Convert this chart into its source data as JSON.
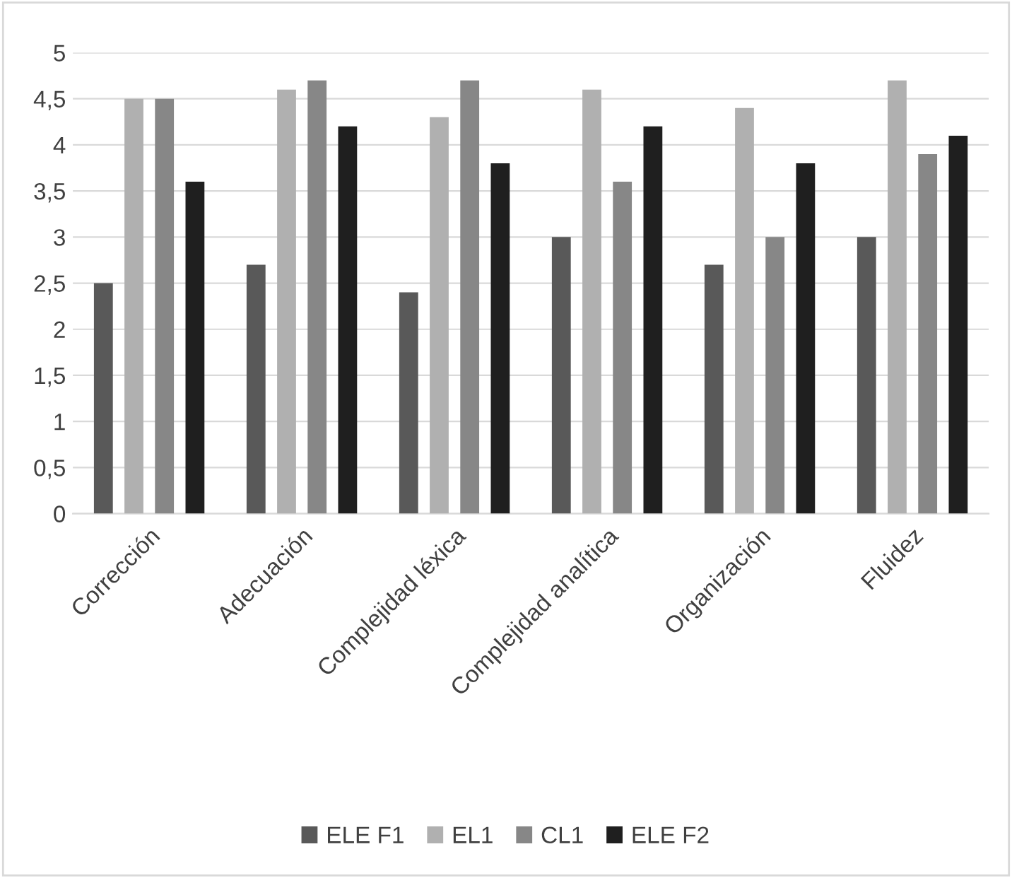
{
  "chart_data": {
    "type": "bar",
    "categories": [
      "Corrección",
      "Adecuación",
      "Complejidad léxica",
      "Complejidad analítica",
      "Organización",
      "Fluidez"
    ],
    "series": [
      {
        "name": "ELE F1",
        "color": "#595959",
        "values": [
          2.5,
          2.7,
          2.4,
          3.0,
          2.7,
          3.0
        ]
      },
      {
        "name": "EL1",
        "color": "#b0b0b0",
        "values": [
          4.5,
          4.6,
          4.3,
          4.6,
          4.4,
          4.7
        ]
      },
      {
        "name": "CL1",
        "color": "#878787",
        "values": [
          4.5,
          4.7,
          4.7,
          3.6,
          3.0,
          3.9
        ]
      },
      {
        "name": "ELE F2",
        "color": "#1f1f1f",
        "values": [
          3.6,
          4.2,
          3.8,
          4.2,
          3.8,
          4.1
        ]
      }
    ],
    "ylim": [
      0,
      5
    ],
    "yticks": [
      0,
      {
        "value": 0.5,
        "label": "0,5"
      },
      1,
      {
        "value": 1.5,
        "label": "1,5"
      },
      2,
      {
        "value": 2.5,
        "label": "2,5"
      },
      3,
      {
        "value": 3.5,
        "label": "3,5"
      },
      4,
      {
        "value": 4.5,
        "label": "4,5"
      },
      5
    ],
    "grid": "y",
    "legend": "bottom"
  }
}
